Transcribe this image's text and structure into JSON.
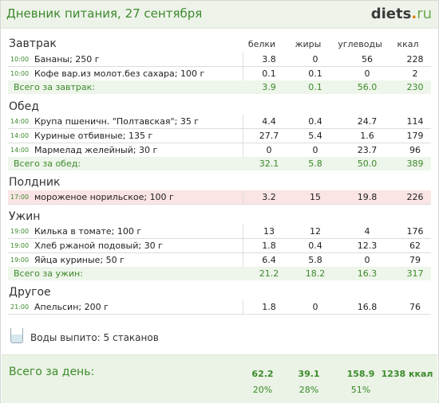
{
  "header": {
    "title": "Дневник питания, 27 сентября",
    "logo_main": "diets",
    "logo_dot": ".",
    "logo_tld": "ru"
  },
  "columns": {
    "protein": "белки",
    "fat": "жиры",
    "carbs": "углеводы",
    "kcal": "ккал"
  },
  "meals": [
    {
      "title": "Завтрак",
      "items": [
        {
          "time": "10:00",
          "name": "Бананы; 250 г",
          "protein": "3.8",
          "fat": "0",
          "carbs": "56",
          "kcal": "228"
        },
        {
          "time": "10:00",
          "name": "Кофе вар.из молот.без сахара; 100 г",
          "protein": "0.1",
          "fat": "0.1",
          "carbs": "0",
          "kcal": "2"
        }
      ],
      "total": {
        "label": "Всего за завтрак:",
        "protein": "3.9",
        "fat": "0.1",
        "carbs": "56.0",
        "kcal": "230"
      }
    },
    {
      "title": "Обед",
      "items": [
        {
          "time": "14:00",
          "name": "Крупа пшеничн. \"Полтавская\"; 35 г",
          "protein": "4.4",
          "fat": "0.4",
          "carbs": "24.7",
          "kcal": "114"
        },
        {
          "time": "14:00",
          "name": "Куриные отбивные; 135 г",
          "protein": "27.7",
          "fat": "5.4",
          "carbs": "1.6",
          "kcal": "179"
        },
        {
          "time": "14:00",
          "name": "Мармелад желейный; 30 г",
          "protein": "0",
          "fat": "0",
          "carbs": "23.7",
          "kcal": "96"
        }
      ],
      "total": {
        "label": "Всего за обед:",
        "protein": "32.1",
        "fat": "5.8",
        "carbs": "50.0",
        "kcal": "389"
      }
    },
    {
      "title": "Полдник",
      "items": [
        {
          "time": "17:00",
          "name": "мороженое норильское; 100 г",
          "protein": "3.2",
          "fat": "15",
          "carbs": "19.8",
          "kcal": "226"
        }
      ]
    },
    {
      "title": "Ужин",
      "items": [
        {
          "time": "19:00",
          "name": "Килька в томате; 100 г",
          "protein": "13",
          "fat": "12",
          "carbs": "4",
          "kcal": "176"
        },
        {
          "time": "19:00",
          "name": "Хлеб ржаной подовый; 30 г",
          "protein": "1.8",
          "fat": "0.4",
          "carbs": "12.3",
          "kcal": "62"
        },
        {
          "time": "19:00",
          "name": "Яйца куриные; 50 г",
          "protein": "6.4",
          "fat": "5.8",
          "carbs": "0",
          "kcal": "79"
        }
      ],
      "total": {
        "label": "Всего за ужин:",
        "protein": "21.2",
        "fat": "18.2",
        "carbs": "16.3",
        "kcal": "317"
      }
    },
    {
      "title": "Другое",
      "items": [
        {
          "time": "21:00",
          "name": "Апельсин; 200 г",
          "protein": "1.8",
          "fat": "0",
          "carbs": "16.8",
          "kcal": "76"
        }
      ]
    }
  ],
  "water": {
    "label": "Воды выпито: 5 стаканов"
  },
  "day_total": {
    "label": "Всего за день:",
    "protein": "62.2",
    "fat": "39.1",
    "carbs": "158.9",
    "kcal": "1238 ккал",
    "protein_pct": "20%",
    "fat_pct": "28%",
    "carbs_pct": "51%"
  }
}
